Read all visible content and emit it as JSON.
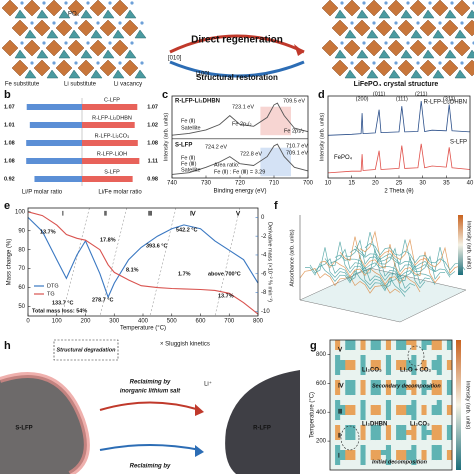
{
  "header": {
    "texts": [
      "PO₄",
      "Fe substitute",
      "Li substitute",
      "Li vacancy",
      "[010]",
      "[100]",
      "Direct regeneration",
      "Structural restoration",
      "LiFePO₄ crystal structure"
    ]
  },
  "chart_data": [
    {
      "type": "bar",
      "label": "b",
      "categories": [
        "C-LFP",
        "R-LFP-Li₂DHBN",
        "R-LFP-Li₂CO₃",
        "R-LFP-LiOH",
        "S-LFP"
      ],
      "series": [
        {
          "name": "Li/P molar ratio",
          "color": "#5b8fd6",
          "values": [
            1.07,
            1.01,
            1.08,
            1.08,
            0.92
          ]
        },
        {
          "name": "Li/Fe molar ratio",
          "color": "#e8625a",
          "values": [
            1.07,
            1.02,
            1.08,
            1.11,
            0.98
          ]
        }
      ],
      "xlim": [
        0,
        1.2
      ]
    },
    {
      "type": "line",
      "label": "c",
      "xlabel": "Binding energy (eV)",
      "ylabel": "Intensity (arb. units)",
      "xlim": [
        740,
        700
      ],
      "xticks": [
        740,
        730,
        720,
        710,
        700
      ],
      "ylim": [
        0,
        2.3
      ],
      "x": [
        740,
        735,
        730,
        726,
        723,
        720,
        716,
        712,
        710,
        709,
        707,
        704,
        700
      ],
      "series": [
        {
          "name": "R-LFP-Li₂DHBN",
          "color": "#555555",
          "values": [
            1.2,
            1.25,
            1.35,
            1.5,
            1.75,
            1.5,
            1.45,
            1.7,
            2.05,
            2.1,
            1.75,
            1.4,
            1.3
          ]
        },
        {
          "name": "S-LFP",
          "color": "#555555",
          "values": [
            0.1,
            0.15,
            0.3,
            0.45,
            0.6,
            0.4,
            0.35,
            0.6,
            0.9,
            0.95,
            0.6,
            0.3,
            0.2
          ]
        }
      ],
      "annotations": [
        "723.1 eV",
        "709.5 eV",
        "Fe 2p₁/₂",
        "Fe 2p₃/₂",
        "Fe (Ⅱ)",
        "Satellite",
        "724.2 eV",
        "722.8 eV",
        "710.7 eV",
        "709.1 eV",
        "Fe (Ⅱ)",
        "Fe (Ⅲ)",
        "Satellite",
        "Area ratio:",
        "Fe (Ⅱ) : Fe (Ⅲ) = 3.29"
      ]
    },
    {
      "type": "line",
      "label": "d",
      "xlabel": "2 Theta (θ)",
      "ylabel": "Intensity (arb. units)",
      "xlim": [
        10,
        40
      ],
      "xticks": [
        10,
        15,
        20,
        25,
        30,
        35,
        40
      ],
      "ylim": [
        0,
        2.4
      ],
      "x": [
        10,
        15,
        17,
        17.2,
        17.4,
        20,
        20.8,
        21.2,
        25,
        25.6,
        26.2,
        29,
        29.7,
        30.4,
        32,
        35,
        35.6,
        36.2,
        40
      ],
      "series": [
        {
          "name": "R-LFP-Li₂DHBN",
          "color": "#2b4f8a",
          "values": [
            1.25,
            1.28,
            1.3,
            1.9,
            1.3,
            1.32,
            2.0,
            1.33,
            1.35,
            2.1,
            1.35,
            1.36,
            2.25,
            1.36,
            1.4,
            1.38,
            2.15,
            1.38,
            1.35
          ]
        },
        {
          "name": "S-LFP",
          "color": "#e0504a",
          "values": [
            0.15,
            0.2,
            0.2,
            0.7,
            0.22,
            0.25,
            0.8,
            0.25,
            0.28,
            0.95,
            0.28,
            0.3,
            1.0,
            0.3,
            0.35,
            0.32,
            0.9,
            0.3,
            0.25
          ]
        }
      ],
      "annotations": [
        "(200)",
        "(011)",
        "(111)",
        "(211)",
        "(311)",
        "FePO₄"
      ]
    },
    {
      "type": "line",
      "label": "e",
      "xlabel": "Temperature (°C)",
      "ylabel": "Mass change (%)",
      "y2label": "Derivative mass (×10⁻² % min⁻¹)",
      "xlim": [
        0,
        800
      ],
      "xticks": [
        0,
        100,
        200,
        300,
        400,
        500,
        600,
        700,
        800
      ],
      "ylim": [
        45,
        102
      ],
      "yticks": [
        50,
        60,
        70,
        80,
        90,
        100
      ],
      "y2lim": [
        -10.5,
        1
      ],
      "y2ticks": [
        -10,
        -8,
        -6,
        -4,
        -2,
        0
      ],
      "x": [
        0,
        50,
        100,
        133.7,
        170,
        200,
        250,
        278.7,
        300,
        350,
        393.6,
        450,
        500,
        542.2,
        600,
        650,
        700,
        750,
        800
      ],
      "series": [
        {
          "name": "DTG",
          "color": "#3a78c2",
          "axis": "y2",
          "values": [
            0,
            -1.5,
            -4.5,
            -6.5,
            -4,
            -2.5,
            -6,
            -8.5,
            -7,
            -4.5,
            -3.2,
            -2,
            -1.2,
            -0.8,
            -1.2,
            -2.5,
            -3.5,
            -4.5,
            -7
          ]
        },
        {
          "name": "TG",
          "color": "#d9534f",
          "values": [
            100,
            98,
            93,
            88,
            86,
            85,
            80,
            72,
            68,
            64,
            61,
            60,
            59.5,
            59.3,
            59,
            58.5,
            57,
            52,
            46
          ]
        }
      ],
      "annotations": [
        "Ⅰ",
        "Ⅱ",
        "Ⅲ",
        "Ⅳ",
        "Ⅴ",
        "13.7%",
        "17.8%",
        "8.1%",
        "1.7%",
        "above 700°C",
        "13.7%",
        "393.6 °C",
        "542.2 °C",
        "133.7 °C",
        "278.7 °C",
        "Total mass loss: 54%"
      ]
    },
    {
      "type": "heatmap",
      "label": "g",
      "ylabel": "Temperature (°C)",
      "ylim": [
        0,
        900
      ],
      "yticks": [
        200,
        400,
        600,
        800
      ],
      "colorbar_label": "Intensity (arb. units)",
      "annotations": [
        "Li₂CO₃",
        "Li₂O + CO₂",
        "Secondary decomposition",
        "Li₂DHBN",
        "Li₂CO₃",
        "Initial decomposition",
        "Ⅴ",
        "Ⅳ",
        "Ⅲ",
        "Ⅱ",
        "Ⅰ"
      ]
    }
  ],
  "panel_f": {
    "label": "f",
    "texts": [
      "Absorbance (arb. units)",
      "Intensity (arb. units)"
    ]
  },
  "panel_h": {
    "label": "h",
    "texts": [
      "Structural degradation",
      "× Sluggish kinetics",
      "Reclaiming by",
      "inorganic lithium salt",
      "Reclaiming by",
      "S-LFP",
      "R-LFP",
      "Li⁺"
    ]
  }
}
